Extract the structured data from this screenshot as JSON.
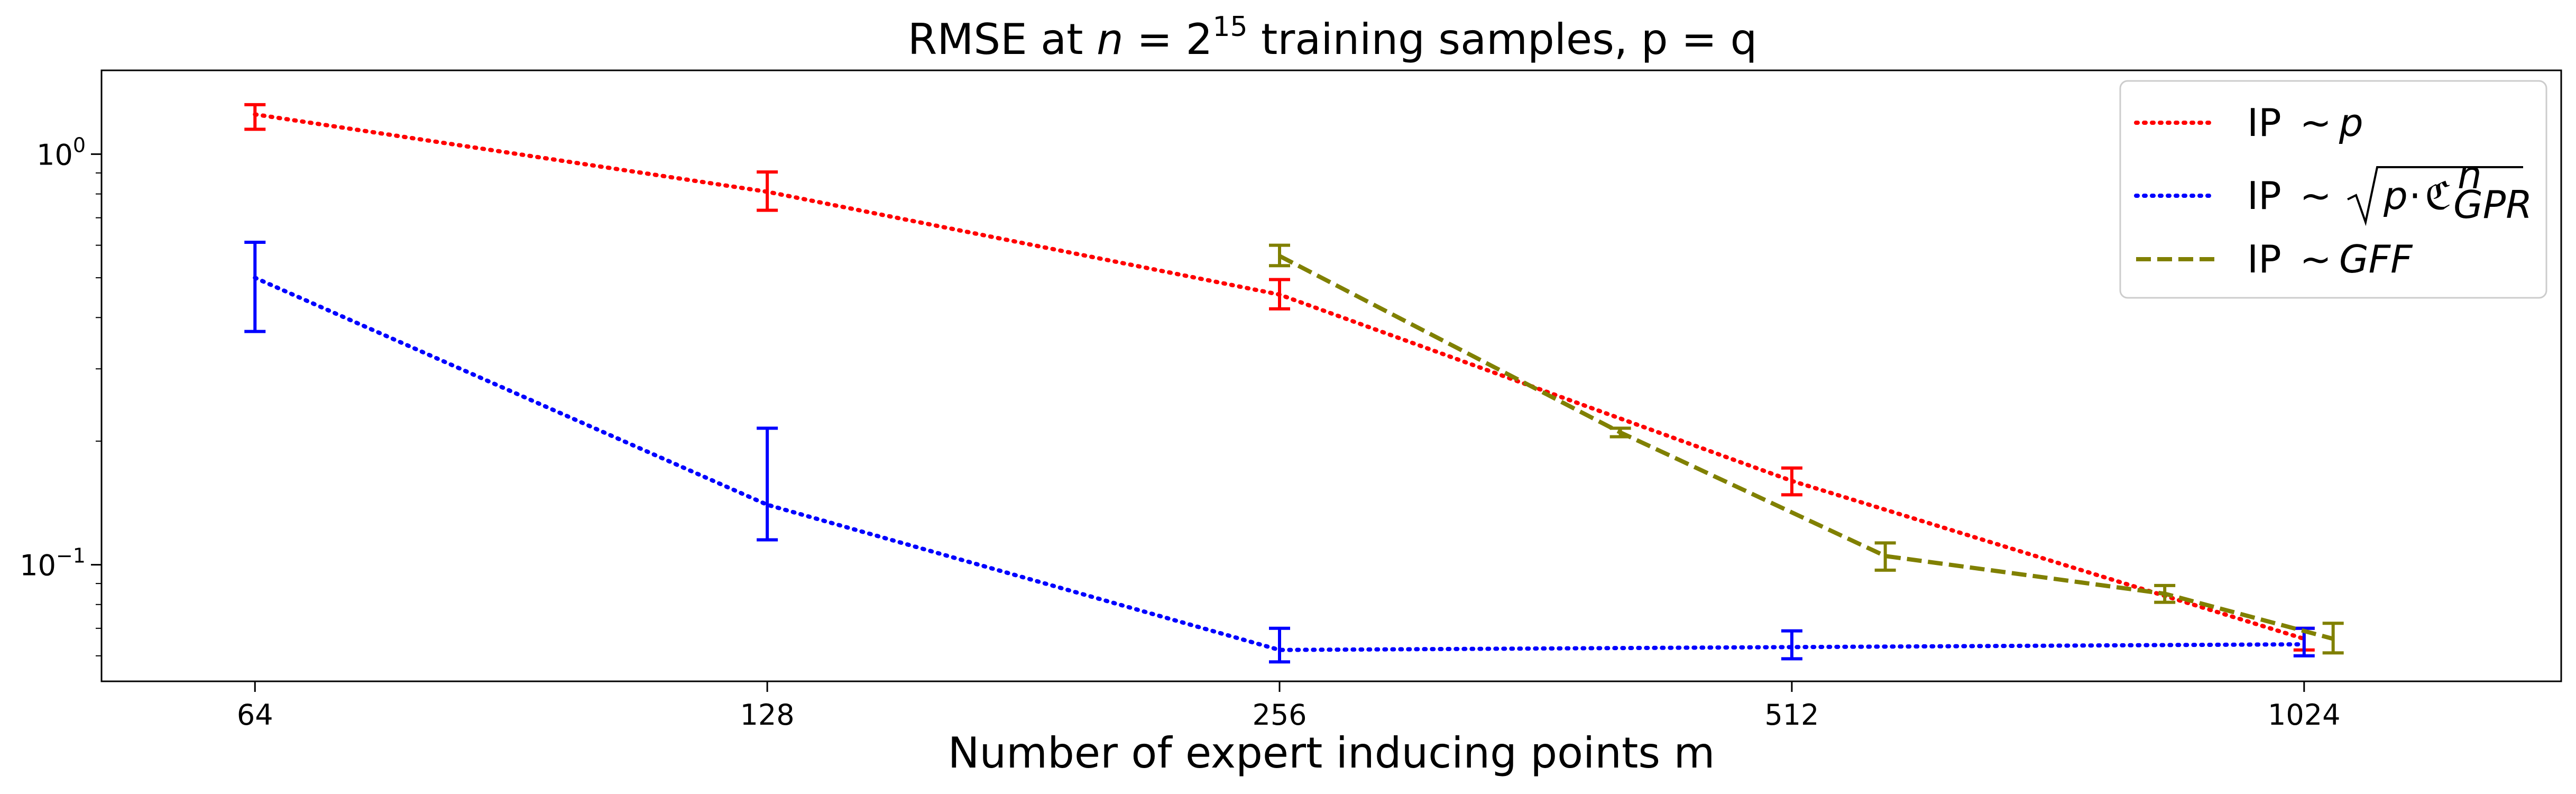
{
  "chart_data": {
    "type": "line",
    "title_prefix": "RMSE at ",
    "title_n": "n",
    "title_eq": " = 2",
    "title_exp": "15",
    "title_suffix": " training samples, p = q",
    "xlabel": "Number of expert inducing points m",
    "ylabel": "",
    "x_scale": "log2",
    "y_scale": "log10",
    "xlim": [
      52,
      1450
    ],
    "ylim": [
      0.052,
      1.6
    ],
    "x_ticks": [
      64,
      128,
      256,
      512,
      1024
    ],
    "x_tick_labels": [
      "64",
      "128",
      "256",
      "512",
      "1024"
    ],
    "y_major_ticks": [
      1.0,
      0.1
    ],
    "y_major_labels": [
      {
        "base": "10",
        "exp": "0"
      },
      {
        "base": "10",
        "exp": "−1"
      }
    ],
    "grid": false,
    "legend_position": "top-right",
    "series": [
      {
        "label_prefix": "IP ",
        "label_math": "~p",
        "color": "#ff0000",
        "style": "dotted",
        "x": [
          64,
          128,
          256,
          512,
          1024
        ],
        "y": [
          1.25,
          0.81,
          0.455,
          0.16,
          0.066
        ],
        "err_low": [
          1.15,
          0.73,
          0.42,
          0.148,
          0.062
        ],
        "err_high": [
          1.32,
          0.905,
          0.495,
          0.172,
          0.07
        ]
      },
      {
        "label_prefix": "IP ",
        "label_math": "~√(p·C^n_GPR)",
        "color": "#0000ff",
        "style": "dotted",
        "x": [
          64,
          128,
          256,
          512,
          1024
        ],
        "y": [
          0.5,
          0.14,
          0.062,
          0.063,
          0.064
        ],
        "err_low": [
          0.37,
          0.115,
          0.058,
          0.059,
          0.06
        ],
        "err_high": [
          0.61,
          0.215,
          0.07,
          0.069,
          0.07
        ]
      },
      {
        "label_prefix": "IP ",
        "label_math": "~GFF",
        "color": "#808000",
        "style": "dashed",
        "x": [
          256,
          406,
          581,
          848,
          1065
        ],
        "y": [
          0.565,
          0.21,
          0.105,
          0.085,
          0.066
        ],
        "err_low": [
          0.535,
          0.205,
          0.097,
          0.081,
          0.061
        ],
        "err_high": [
          0.6,
          0.215,
          0.113,
          0.089,
          0.072
        ]
      }
    ]
  }
}
